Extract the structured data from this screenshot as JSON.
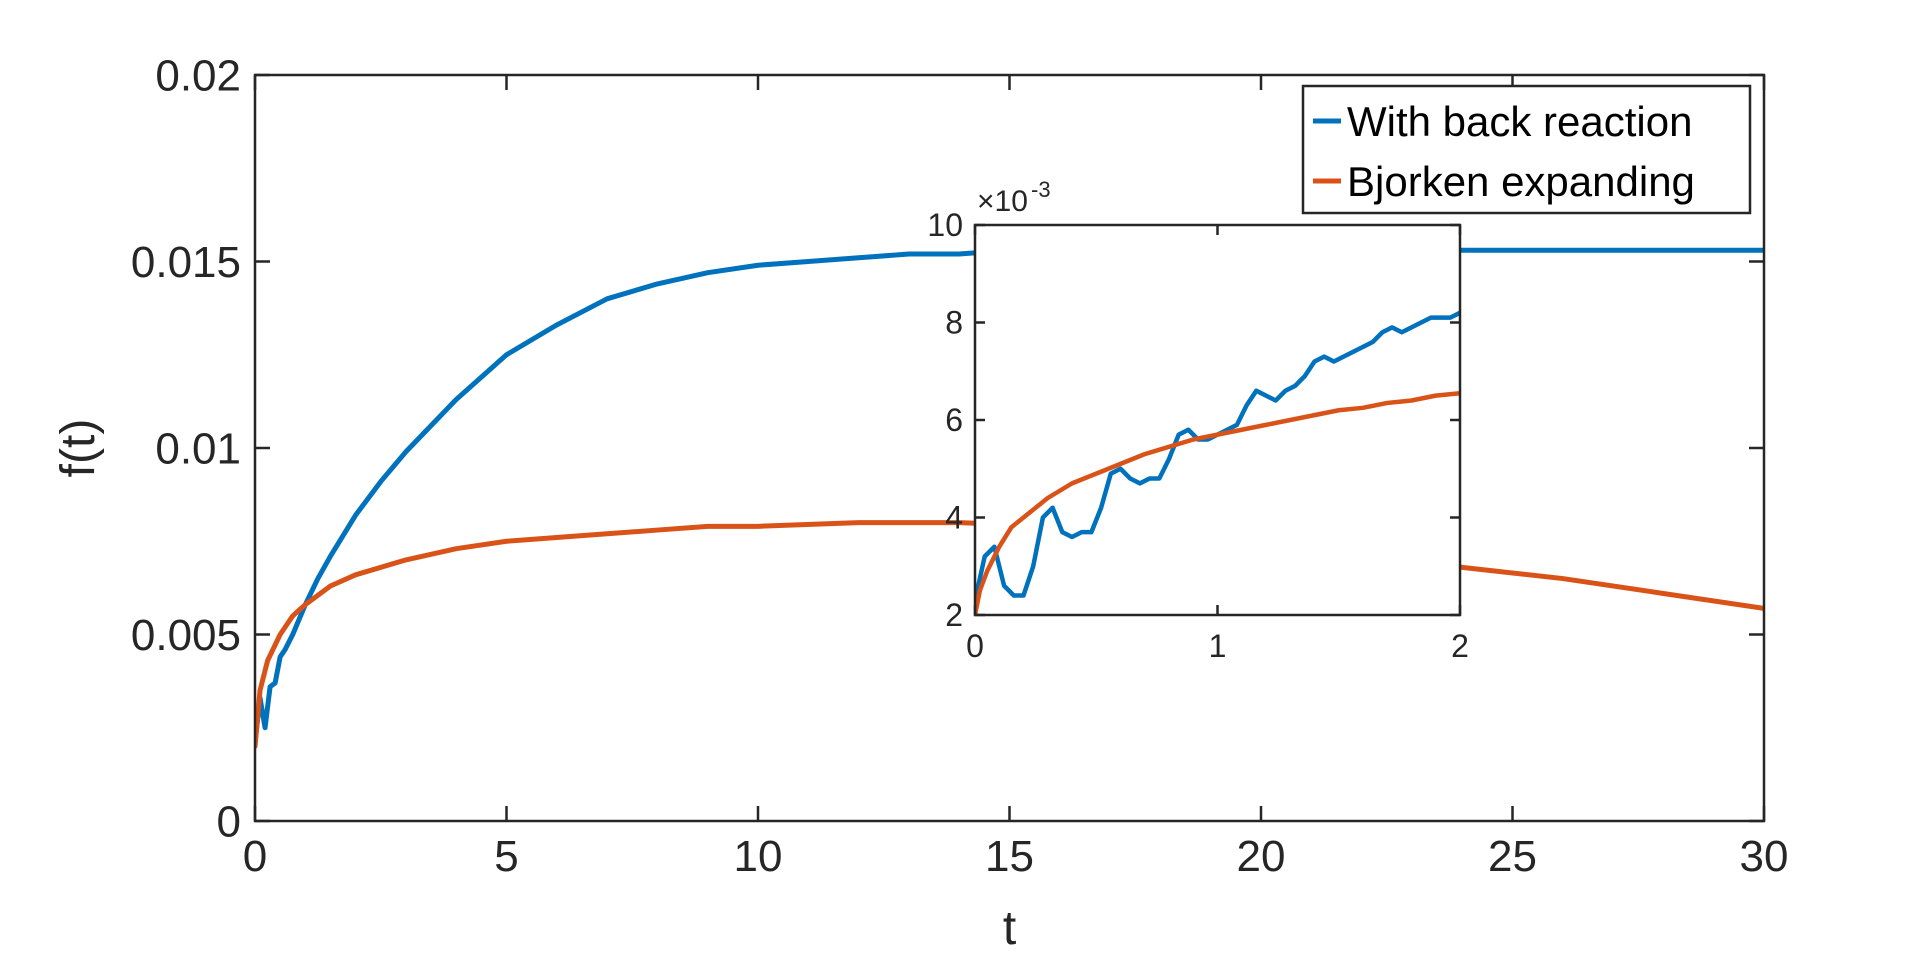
{
  "chart_data": [
    {
      "type": "line",
      "role": "main",
      "title": "",
      "xlabel": "t",
      "ylabel": "f(t)",
      "xlim": [
        0,
        30
      ],
      "ylim": [
        0,
        0.02
      ],
      "xticks": [
        0,
        5,
        10,
        15,
        20,
        25,
        30
      ],
      "xtick_labels": [
        "0",
        "5",
        "10",
        "15",
        "20",
        "25",
        "30"
      ],
      "yticks": [
        0,
        0.005,
        0.01,
        0.015,
        0.02
      ],
      "ytick_labels": [
        "0",
        "0.005",
        "0.01",
        "0.015",
        "0.02"
      ],
      "grid": false,
      "legend": "top-right",
      "series": [
        {
          "name": "With back reaction",
          "color": "#0072BD",
          "x": [
            0,
            0.1,
            0.2,
            0.3,
            0.4,
            0.5,
            0.6,
            0.75,
            1,
            1.25,
            1.5,
            2,
            2.5,
            3,
            3.5,
            4,
            5,
            6,
            7,
            8,
            9,
            10,
            11,
            12,
            13,
            14,
            15,
            16,
            17,
            18,
            20,
            22,
            24,
            26,
            28,
            30
          ],
          "y": [
            0.0021,
            0.0033,
            0.0025,
            0.0036,
            0.0037,
            0.0044,
            0.0046,
            0.005,
            0.0058,
            0.0065,
            0.0071,
            0.0082,
            0.0091,
            0.0099,
            0.0106,
            0.0113,
            0.0125,
            0.0133,
            0.014,
            0.0144,
            0.0147,
            0.0149,
            0.015,
            0.0151,
            0.0152,
            0.0152,
            0.0153,
            0.0153,
            0.0153,
            0.0153,
            0.0153,
            0.0153,
            0.0153,
            0.0153,
            0.0153,
            0.0153
          ]
        },
        {
          "name": "Bjorken expanding",
          "color": "#D95319",
          "x": [
            0,
            0.1,
            0.25,
            0.5,
            0.75,
            1,
            1.5,
            2,
            3,
            4,
            5,
            6,
            7,
            8,
            9,
            10,
            12,
            14,
            16,
            18,
            20,
            22,
            24,
            26,
            28,
            30
          ],
          "y": [
            0.002,
            0.0035,
            0.0043,
            0.005,
            0.0055,
            0.0058,
            0.0063,
            0.0066,
            0.007,
            0.0073,
            0.0075,
            0.0076,
            0.0077,
            0.0078,
            0.0079,
            0.0079,
            0.008,
            0.008,
            0.0079,
            0.0077,
            0.0075,
            0.0072,
            0.0068,
            0.0065,
            0.0061,
            0.0057
          ]
        }
      ]
    },
    {
      "type": "line",
      "role": "inset",
      "title": "",
      "xlim": [
        0,
        2
      ],
      "ylim": [
        2,
        10
      ],
      "y_exponent_label": "×10",
      "y_exponent_power": "-3",
      "xticks": [
        0,
        1,
        2
      ],
      "xtick_labels": [
        "0",
        "1",
        "2"
      ],
      "yticks": [
        2,
        4,
        6,
        8,
        10
      ],
      "ytick_labels": [
        "2",
        "4",
        "6",
        "8",
        "10"
      ],
      "grid": false,
      "series": [
        {
          "name": "With back reaction",
          "color": "#0072BD",
          "x": [
            0,
            0.04,
            0.08,
            0.12,
            0.16,
            0.2,
            0.24,
            0.28,
            0.32,
            0.36,
            0.4,
            0.44,
            0.48,
            0.52,
            0.56,
            0.6,
            0.64,
            0.68,
            0.72,
            0.76,
            0.8,
            0.84,
            0.88,
            0.92,
            0.96,
            1.0,
            1.04,
            1.08,
            1.12,
            1.16,
            1.2,
            1.24,
            1.28,
            1.32,
            1.36,
            1.4,
            1.44,
            1.48,
            1.52,
            1.56,
            1.6,
            1.64,
            1.68,
            1.72,
            1.76,
            1.8,
            1.84,
            1.88,
            1.92,
            1.96,
            2.0
          ],
          "y": [
            2.3,
            3.2,
            3.4,
            2.6,
            2.4,
            2.4,
            3.0,
            4.0,
            4.2,
            3.7,
            3.6,
            3.7,
            3.7,
            4.2,
            4.9,
            5.0,
            4.8,
            4.7,
            4.8,
            4.8,
            5.2,
            5.7,
            5.8,
            5.6,
            5.6,
            5.7,
            5.8,
            5.9,
            6.3,
            6.6,
            6.5,
            6.4,
            6.6,
            6.7,
            6.9,
            7.2,
            7.3,
            7.2,
            7.3,
            7.4,
            7.5,
            7.6,
            7.8,
            7.9,
            7.8,
            7.9,
            8.0,
            8.1,
            8.1,
            8.1,
            8.2
          ]
        },
        {
          "name": "Bjorken expanding",
          "color": "#D95319",
          "x": [
            0,
            0.02,
            0.05,
            0.1,
            0.15,
            0.2,
            0.3,
            0.4,
            0.5,
            0.6,
            0.7,
            0.8,
            0.9,
            1.0,
            1.1,
            1.2,
            1.3,
            1.4,
            1.5,
            1.6,
            1.7,
            1.8,
            1.9,
            2.0
          ],
          "y": [
            2.0,
            2.5,
            2.9,
            3.4,
            3.8,
            4.0,
            4.4,
            4.7,
            4.9,
            5.1,
            5.3,
            5.45,
            5.6,
            5.7,
            5.8,
            5.9,
            6.0,
            6.1,
            6.2,
            6.25,
            6.35,
            6.4,
            6.5,
            6.55
          ]
        }
      ]
    }
  ],
  "legend": {
    "items": [
      {
        "label": "With back reaction",
        "color": "#0072BD"
      },
      {
        "label": "Bjorken expanding",
        "color": "#D95319"
      }
    ]
  }
}
